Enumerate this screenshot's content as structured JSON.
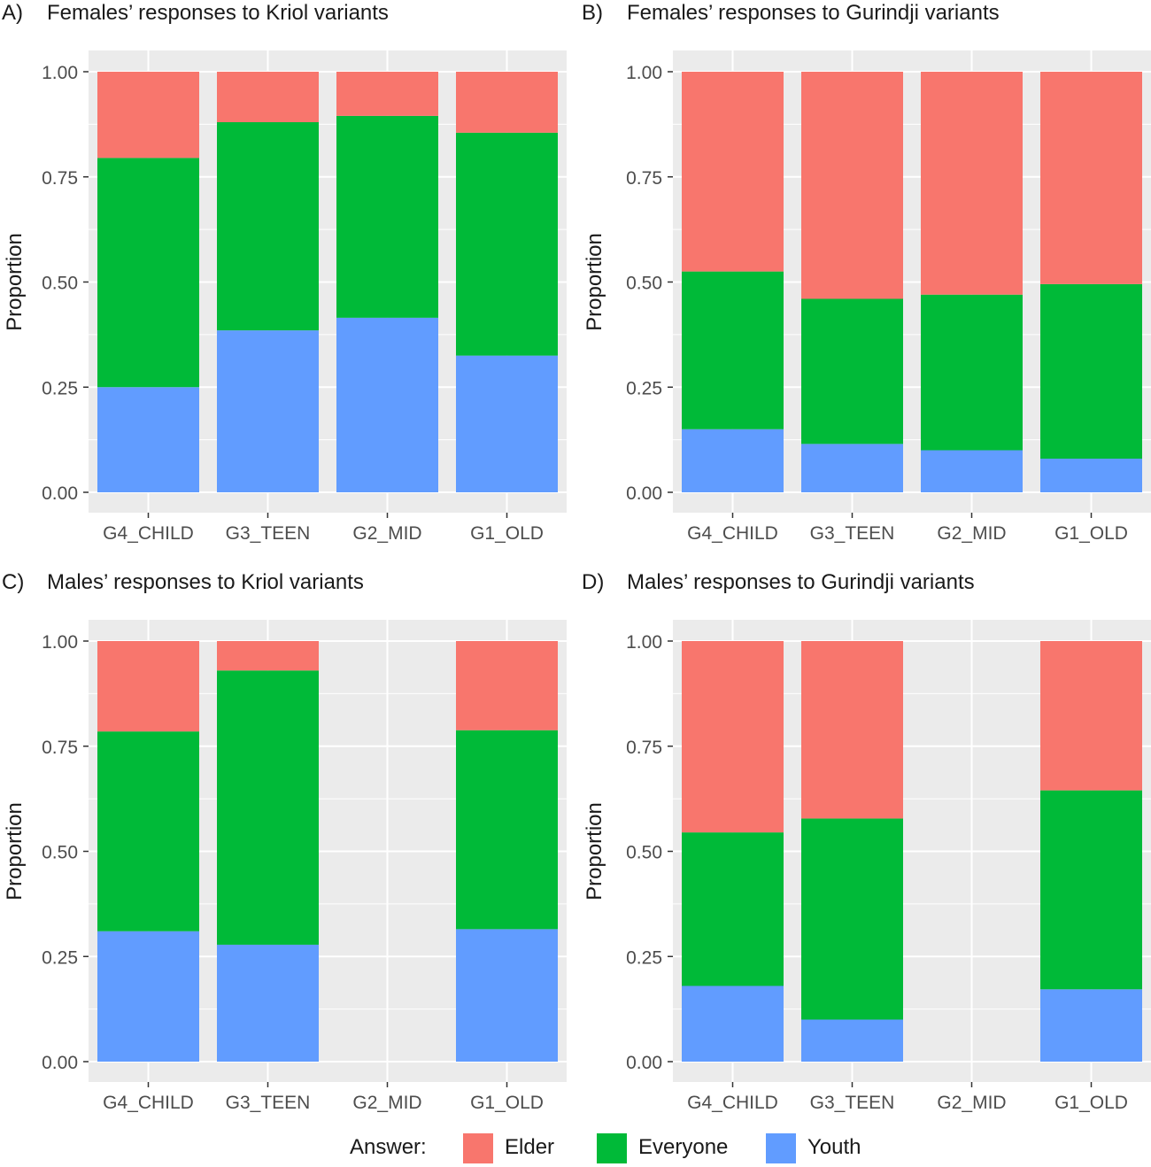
{
  "colors": {
    "Elder": "#F8766D",
    "Everyone": "#00BA38",
    "Youth": "#619CFF",
    "panel_bg": "#EBEBEB",
    "grid": "#FFFFFF"
  },
  "legend": {
    "title": "Answer:",
    "items": [
      "Elder",
      "Everyone",
      "Youth"
    ]
  },
  "chart_data": [
    {
      "id": "A",
      "type": "bar",
      "stacked": true,
      "tag": "A)",
      "title": "Females’ responses to Kriol variants",
      "ylabel": "Proportion",
      "xlabel": "",
      "ylim": [
        0,
        1
      ],
      "yticks": [
        "0.00",
        "0.25",
        "0.50",
        "0.75",
        "1.00"
      ],
      "categories": [
        "G4_CHILD",
        "G3_TEEN",
        "G2_MID",
        "G1_OLD"
      ],
      "series": [
        {
          "name": "Youth",
          "values": [
            0.25,
            0.385,
            0.415,
            0.325
          ]
        },
        {
          "name": "Everyone",
          "values": [
            0.545,
            0.495,
            0.48,
            0.53
          ]
        },
        {
          "name": "Elder",
          "values": [
            0.205,
            0.12,
            0.105,
            0.145
          ]
        }
      ]
    },
    {
      "id": "B",
      "type": "bar",
      "stacked": true,
      "tag": "B)",
      "title": "Females’ responses to Gurindji variants",
      "ylabel": "Proportion",
      "xlabel": "",
      "ylim": [
        0,
        1
      ],
      "yticks": [
        "0.00",
        "0.25",
        "0.50",
        "0.75",
        "1.00"
      ],
      "categories": [
        "G4_CHILD",
        "G3_TEEN",
        "G2_MID",
        "G1_OLD"
      ],
      "series": [
        {
          "name": "Youth",
          "values": [
            0.15,
            0.115,
            0.1,
            0.08
          ]
        },
        {
          "name": "Everyone",
          "values": [
            0.375,
            0.345,
            0.37,
            0.415
          ]
        },
        {
          "name": "Elder",
          "values": [
            0.475,
            0.54,
            0.53,
            0.505
          ]
        }
      ]
    },
    {
      "id": "C",
      "type": "bar",
      "stacked": true,
      "tag": "C)",
      "title": "Males’ responses to Kriol variants",
      "ylabel": "Proportion",
      "xlabel": "",
      "ylim": [
        0,
        1
      ],
      "yticks": [
        "0.00",
        "0.25",
        "0.50",
        "0.75",
        "1.00"
      ],
      "categories": [
        "G4_CHILD",
        "G3_TEEN",
        "G2_MID",
        "G1_OLD"
      ],
      "series": [
        {
          "name": "Youth",
          "values": [
            0.31,
            0.278,
            0,
            0.315
          ]
        },
        {
          "name": "Everyone",
          "values": [
            0.475,
            0.652,
            0,
            0.473
          ]
        },
        {
          "name": "Elder",
          "values": [
            0.215,
            0.07,
            0,
            0.212
          ]
        }
      ]
    },
    {
      "id": "D",
      "type": "bar",
      "stacked": true,
      "tag": "D)",
      "title": "Males’ responses to Gurindji variants",
      "ylabel": "Proportion",
      "xlabel": "",
      "ylim": [
        0,
        1
      ],
      "yticks": [
        "0.00",
        "0.25",
        "0.50",
        "0.75",
        "1.00"
      ],
      "categories": [
        "G4_CHILD",
        "G3_TEEN",
        "G2_MID",
        "G1_OLD"
      ],
      "series": [
        {
          "name": "Youth",
          "values": [
            0.18,
            0.1,
            0,
            0.172
          ]
        },
        {
          "name": "Everyone",
          "values": [
            0.365,
            0.478,
            0,
            0.473
          ]
        },
        {
          "name": "Elder",
          "values": [
            0.455,
            0.422,
            0,
            0.355
          ]
        }
      ]
    }
  ]
}
